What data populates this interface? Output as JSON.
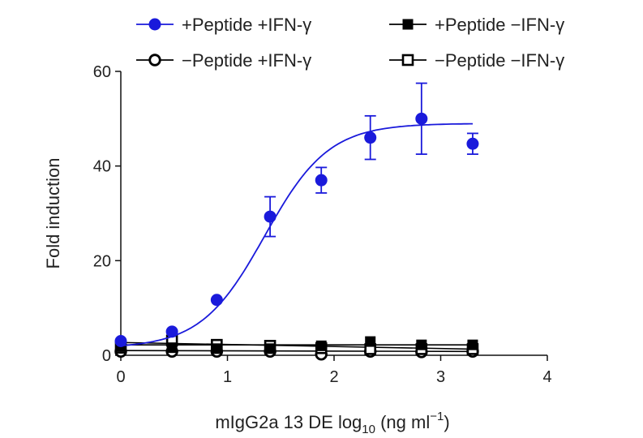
{
  "chart_data": {
    "type": "scatter",
    "title": "",
    "xlabel": {
      "main": "mIgG2a 13 DE log",
      "sub": "10",
      "unit_open": " (ng ml",
      "sup": "−1",
      "unit_close": ")"
    },
    "ylabel": "Fold induction",
    "xlim": [
      0,
      4
    ],
    "ylim": [
      0,
      60
    ],
    "xticks": [
      "0",
      "1",
      "2",
      "3",
      "4"
    ],
    "yticks": [
      "0",
      "20",
      "40",
      "60"
    ],
    "legend_placement": "top",
    "series": [
      {
        "name": "+Peptide +IFN-γ",
        "marker": "filled-circle",
        "color": "#1a1adb",
        "x": [
          0,
          0.48,
          0.9,
          1.4,
          1.88,
          2.34,
          2.82,
          3.3
        ],
        "y": [
          3,
          5,
          11.7,
          29.3,
          37,
          46,
          50,
          44.7
        ],
        "err": [
          0,
          0,
          0,
          4.2,
          2.7,
          4.6,
          7.5,
          2.2
        ],
        "fit": {
          "bottom": 1.5,
          "top": 49,
          "ec50_log": 1.35,
          "hill": 1.45,
          "x_start": 0,
          "x_end": 3.3
        }
      },
      {
        "name": "+Peptide −IFN-γ",
        "marker": "filled-square",
        "color": "#000000",
        "x": [
          0,
          0.48,
          0.9,
          1.4,
          1.88,
          2.34,
          2.82,
          3.3
        ],
        "y": [
          1.9,
          1.6,
          1.4,
          1.4,
          2,
          2.9,
          2.2,
          2.2
        ],
        "line": [
          [
            0,
            2.2
          ],
          [
            3.3,
            2.2
          ]
        ]
      },
      {
        "name": "−Peptide +IFN-γ",
        "marker": "open-circle",
        "color": "#000000",
        "x": [
          0,
          0.48,
          0.9,
          1.4,
          1.88,
          2.34,
          2.82,
          3.3
        ],
        "y": [
          0.8,
          0.8,
          0.8,
          0.8,
          0.2,
          0.8,
          0.7,
          0.8
        ],
        "line": [
          [
            0,
            1
          ],
          [
            3.3,
            0.8
          ]
        ]
      },
      {
        "name": "−Peptide −IFN-γ",
        "marker": "open-square",
        "color": "#000000",
        "x": [
          0,
          0.48,
          0.9,
          1.4,
          1.88,
          2.34,
          2.82,
          3.3
        ],
        "y": [
          1.6,
          3.1,
          2.2,
          2,
          1.5,
          1.3,
          1.3,
          1.3
        ],
        "line": [
          [
            0,
            2.7
          ],
          [
            3.3,
            1.3
          ]
        ]
      }
    ]
  }
}
